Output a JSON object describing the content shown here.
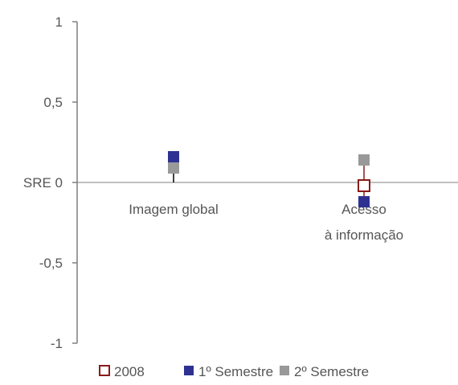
{
  "chart_data": {
    "type": "scatter",
    "categories": [
      "Imagem global",
      "Acesso à informação"
    ],
    "category_label_lines": [
      [
        "Imagem global"
      ],
      [
        "Acesso",
        "à informação"
      ]
    ],
    "y_tick_labels": [
      "1",
      "0,5",
      "SRE 0",
      "-0,5",
      "-1"
    ],
    "y_ticks": [
      1,
      0.5,
      0,
      -0.5,
      -1
    ],
    "ylim": [
      -1,
      1
    ],
    "series": [
      {
        "name": "2008",
        "values": [
          null,
          -0.02
        ],
        "color": "#8b1a1a",
        "marker": "hollow-square"
      },
      {
        "name": "1º Semestre",
        "values": [
          0.16,
          -0.12
        ],
        "color": "#2e3192",
        "marker": "filled-square"
      },
      {
        "name": "2º Semestre",
        "values": [
          0.09,
          0.14
        ],
        "color": "#999999",
        "marker": "filled-square"
      }
    ],
    "connectors": [
      {
        "category_index": 0,
        "from": 0,
        "to": 0.16,
        "color": "#000000"
      },
      {
        "category_index": 1,
        "from": -0.12,
        "to": 0.14,
        "color": "#8b1a1a"
      }
    ],
    "grid": false,
    "legend_position": "bottom"
  }
}
